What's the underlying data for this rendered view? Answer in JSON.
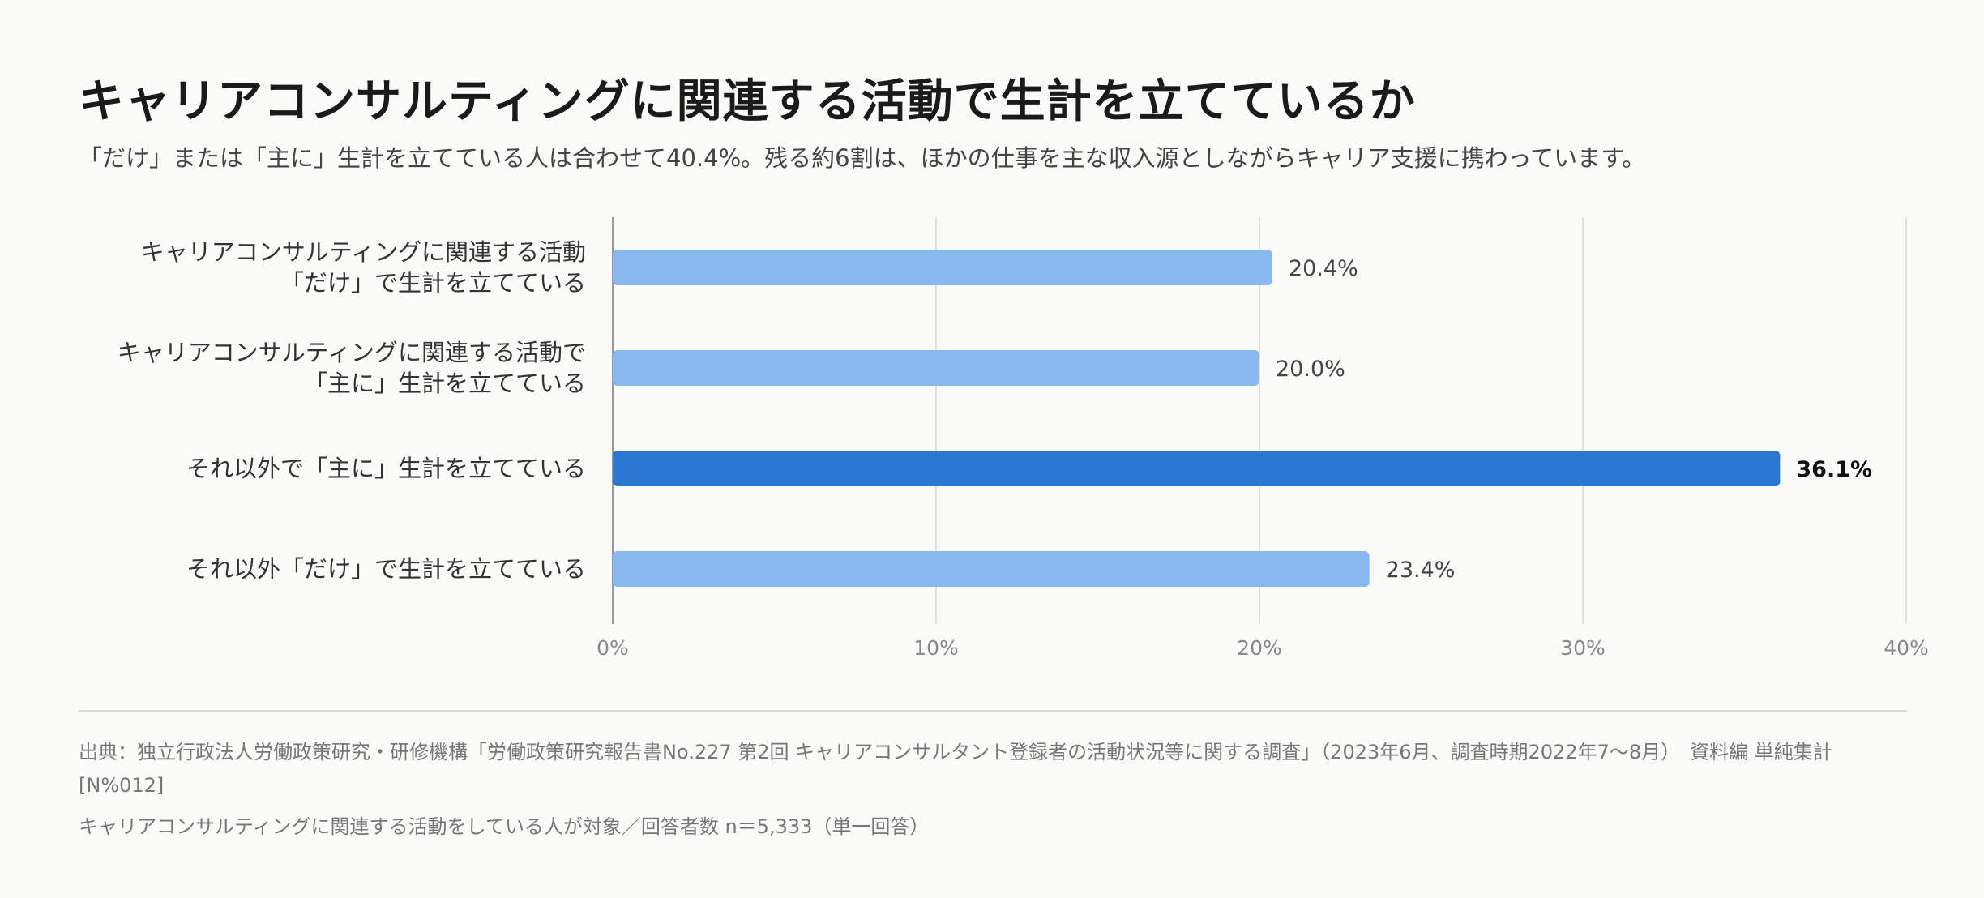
{
  "title": "キャリアコンサルティングに関連する活動で生計を立てているか",
  "subtitle": "「だけ」または「主に」生計を立てている人は合わせて40.4%。残る約6割は、ほかの仕事を主な収入源としながらキャリア支援に携わっています。",
  "colors": {
    "bar": "#88b8f0",
    "bar_highlight": "#2b78d4",
    "grid": "#e0e0e0",
    "axis": "#999999",
    "tick_text": "#888888",
    "value_text": "#444444",
    "value_text_highlight": "#111111"
  },
  "chart_data": {
    "type": "bar",
    "orientation": "horizontal",
    "categories": [
      [
        "キャリアコンサルティングに関連する活動",
        "「だけ」で生計を立てている"
      ],
      [
        "キャリアコンサルティングに関連する活動で",
        "「主に」生計を立てている"
      ],
      [
        "それ以外で「主に」生計を立てている"
      ],
      [
        "それ以外「だけ」で生計を立てている"
      ]
    ],
    "values": [
      20.4,
      20.0,
      36.1,
      23.4
    ],
    "value_labels": [
      "20.4%",
      "20.0%",
      "36.1%",
      "23.4%"
    ],
    "highlight_index": 2,
    "xlim": [
      0,
      40
    ],
    "xticks": [
      0,
      10,
      20,
      30,
      40
    ],
    "xtick_labels": [
      "0%",
      "10%",
      "20%",
      "30%",
      "40%"
    ],
    "grid": true
  },
  "source": "出典：独立行政法人労働政策研究・研修機構「労働政策研究報告書No.227 第2回 キャリアコンサルタント登録者の活動状況等に関する調査」（2023年6月、調査時期2022年7〜8月）　資料編 単純集計 [N%012]",
  "note": "キャリアコンサルティングに関連する活動をしている人が対象／回答者数 n＝5,333（単一回答）"
}
